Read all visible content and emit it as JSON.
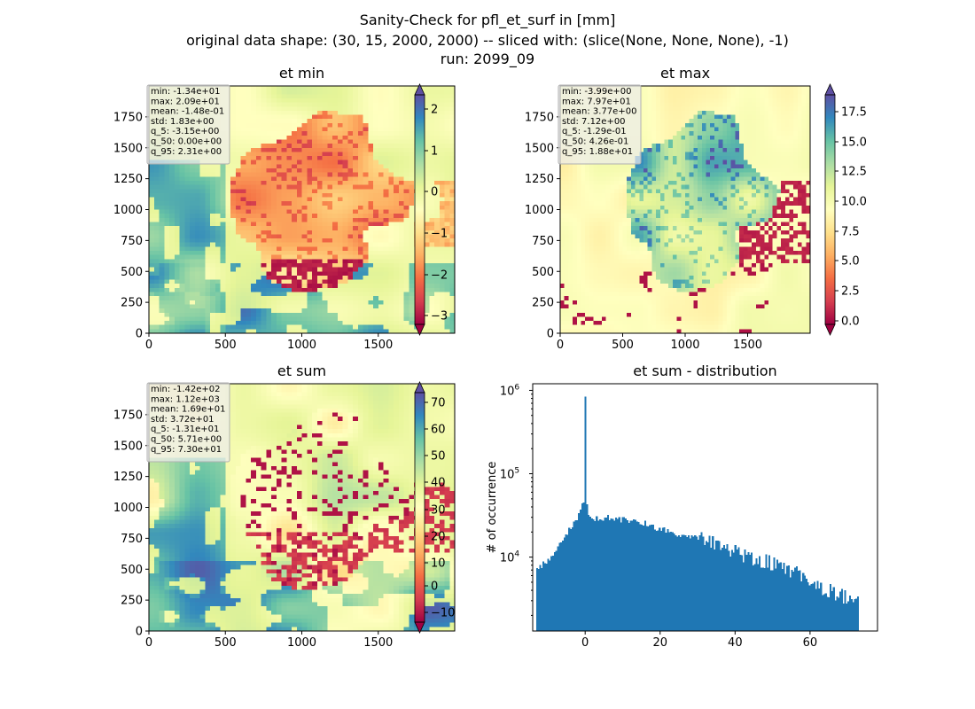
{
  "figure": {
    "title_lines": [
      "Sanity-Check for pfl_et_surf in [mm]",
      "original data shape: (30, 15, 2000, 2000) -- sliced with: (slice(None, None, None), -1)",
      "run: 2099_09"
    ]
  },
  "chart_data": [
    {
      "type": "heatmap",
      "title": "et min",
      "x_ticks": [
        "0",
        "500",
        "1000",
        "1500"
      ],
      "y_ticks": [
        "0",
        "250",
        "500",
        "750",
        "1000",
        "1250",
        "1500",
        "1750"
      ],
      "xlim": [
        0,
        2000
      ],
      "ylim": [
        0,
        2000
      ],
      "colormap": "Spectral",
      "colorbar": {
        "min": -3.4,
        "max": 2.5,
        "ticks": [
          "2",
          "1",
          "0",
          "−1",
          "−2",
          "−3"
        ],
        "extend": "both"
      },
      "stats": [
        "min: -1.34e+01",
        "max: 2.09e+01",
        "mean: -1.48e-01",
        "std: 1.83e+00",
        "q_5: -3.15e+00",
        "q_50: 0.00e+00",
        "q_95: 2.31e+00"
      ]
    },
    {
      "type": "heatmap",
      "title": "et max",
      "x_ticks": [
        "0",
        "500",
        "1000",
        "1500"
      ],
      "y_ticks": [
        "0",
        "250",
        "500",
        "750",
        "1000",
        "1250",
        "1500",
        "1750"
      ],
      "xlim": [
        0,
        2000
      ],
      "ylim": [
        0,
        2000
      ],
      "colormap": "Spectral",
      "colorbar": {
        "min": 0.0,
        "max": 18.8,
        "ticks": [
          "17.5",
          "15.0",
          "12.5",
          "10.0",
          "7.5",
          "5.0",
          "2.5",
          "0.0"
        ],
        "extend": "both"
      },
      "stats": [
        "min: -3.99e+00",
        "max: 7.97e+01",
        "mean: 3.77e+00",
        "std: 7.12e+00",
        "q_5: -1.29e-01",
        "q_50: 4.26e-01",
        "q_95: 1.88e+01"
      ]
    },
    {
      "type": "heatmap",
      "title": "et sum",
      "x_ticks": [
        "0",
        "500",
        "1000",
        "1500"
      ],
      "y_ticks": [
        "0",
        "250",
        "500",
        "750",
        "1000",
        "1250",
        "1500",
        "1750"
      ],
      "xlim": [
        0,
        2000
      ],
      "ylim": [
        0,
        2000
      ],
      "colormap": "Spectral",
      "colorbar": {
        "min": -15,
        "max": 75,
        "ticks": [
          "70",
          "60",
          "50",
          "40",
          "30",
          "20",
          "10",
          "0",
          "−10"
        ],
        "extend": "both"
      },
      "stats": [
        "min: -1.42e+02",
        "max: 1.12e+03",
        "mean: 1.69e+01",
        "std: 3.72e+01",
        "q_5: -1.31e+01",
        "q_50: 5.71e+00",
        "q_95: 7.30e+01"
      ]
    },
    {
      "type": "bar",
      "title": "et sum - distribution",
      "ylabel": "# of occurrence",
      "xlabel": "",
      "yscale": "log",
      "xlim": [
        -14,
        78
      ],
      "ylim": [
        1300,
        1200000
      ],
      "x_ticks": [
        0,
        20,
        40,
        60
      ],
      "x_tick_labels": [
        "0",
        "20",
        "40",
        "60"
      ],
      "y_ticks": [
        10000,
        100000,
        1000000
      ],
      "y_tick_base": "10",
      "y_tick_exps": [
        "4",
        "5",
        "6"
      ],
      "bar_color": "#1f77b4",
      "bins": {
        "start": -13.1,
        "end": 73.0,
        "count": 200
      },
      "envelope": {
        "x": [
          -13.1,
          -10,
          -8,
          -6,
          -4,
          -2,
          -1,
          -0.2,
          0,
          0.2,
          1,
          2,
          4,
          7,
          10,
          15,
          20,
          25,
          30,
          35,
          40,
          45,
          50,
          55,
          60,
          65,
          70,
          73
        ],
        "y": [
          7000,
          9000,
          12000,
          16000,
          22000,
          28000,
          40000,
          45000,
          820000,
          45000,
          32000,
          30000,
          29000,
          30000,
          28000,
          26000,
          22000,
          19000,
          17000,
          15000,
          12000,
          10000,
          8500,
          7000,
          5000,
          4000,
          3200,
          2800
        ]
      }
    }
  ]
}
